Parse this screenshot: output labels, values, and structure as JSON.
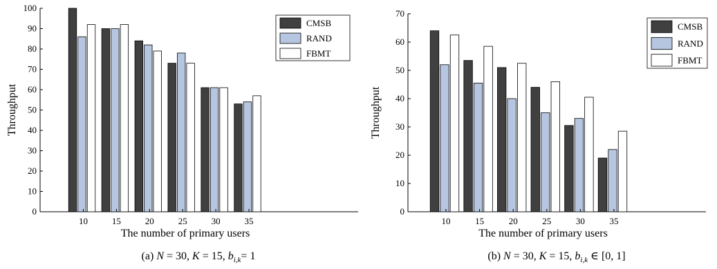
{
  "chart_data": [
    {
      "type": "bar",
      "xlabel": "The number of primary users",
      "ylabel": "Throughput",
      "caption": "(a) N = 30, K = 15, b",
      "caption_parts": {
        "prefix": "(a) ",
        "n": "N",
        "n_eq": " = 30, ",
        "k": "K",
        "k_eq": " = 15, ",
        "b": "b",
        "sub": "i,k",
        "rest": "= 1"
      },
      "categories": [
        "10",
        "15",
        "20",
        "25",
        "30",
        "35"
      ],
      "ylim": [
        0,
        100
      ],
      "yticks": [
        0,
        10,
        20,
        30,
        40,
        50,
        60,
        70,
        80,
        90,
        100
      ],
      "legend_position": "top-right",
      "series": [
        {
          "name": "CMSB",
          "values": [
            100,
            90,
            84,
            73,
            61,
            53
          ]
        },
        {
          "name": "RAND",
          "values": [
            86,
            90,
            82,
            78,
            61,
            54
          ]
        },
        {
          "name": "FBMT",
          "values": [
            92,
            92,
            79,
            73,
            61,
            57
          ]
        }
      ]
    },
    {
      "type": "bar",
      "xlabel": "The number of primary users",
      "ylabel": "Throughput",
      "caption_parts": {
        "prefix": "(b) ",
        "n": "N",
        "n_eq": " = 30, ",
        "k": "K",
        "k_eq": " = 15, ",
        "b": "b",
        "sub": "i,k",
        "rest": "  ∈ [0, 1]"
      },
      "categories": [
        "10",
        "15",
        "20",
        "25",
        "30",
        "35"
      ],
      "ylim": [
        0,
        70
      ],
      "yticks": [
        0,
        10,
        20,
        30,
        40,
        50,
        60,
        70
      ],
      "legend_position": "top-right",
      "series": [
        {
          "name": "CMSB",
          "values": [
            64,
            53.5,
            51,
            44,
            30.5,
            19
          ]
        },
        {
          "name": "RAND",
          "values": [
            52,
            45.5,
            40,
            35,
            33,
            22
          ]
        },
        {
          "name": "FBMT",
          "values": [
            62.5,
            58.5,
            52.5,
            46,
            40.5,
            28.5
          ]
        }
      ]
    }
  ],
  "colors": {
    "CMSB": "#404040",
    "RAND": "#b7c6e0",
    "FBMT": "#ffffff",
    "axis": "#000000"
  }
}
